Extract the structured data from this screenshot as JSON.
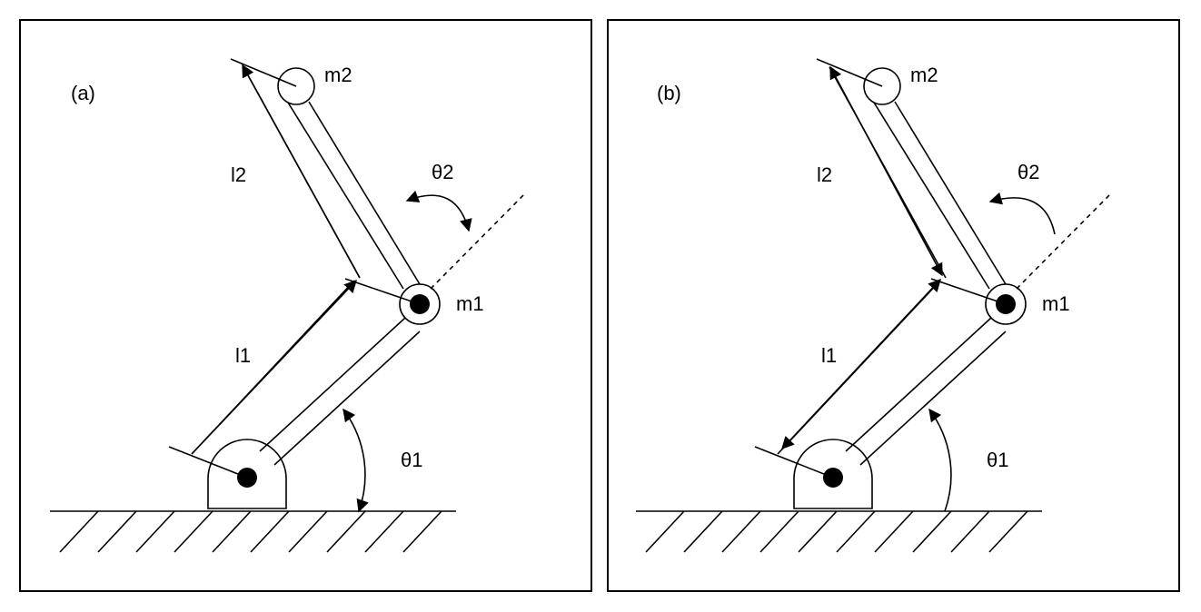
{
  "panels": [
    {
      "id": "a",
      "label": "(a)",
      "labels": {
        "m1": "m1",
        "m2": "m2",
        "l1": "l1",
        "l2": "l2",
        "theta1": "θ1",
        "theta2": "θ2"
      },
      "arrows": {
        "l1": "single",
        "l2": "single",
        "theta1": "double",
        "theta2": "double"
      }
    },
    {
      "id": "b",
      "label": "(b)",
      "labels": {
        "m1": "m1",
        "m2": "m2",
        "l1": "l1",
        "l2": "l2",
        "theta1": "θ1",
        "theta2": "θ2"
      },
      "arrows": {
        "l1": "double",
        "l2": "double",
        "theta1": "single",
        "theta2": "single"
      }
    }
  ]
}
